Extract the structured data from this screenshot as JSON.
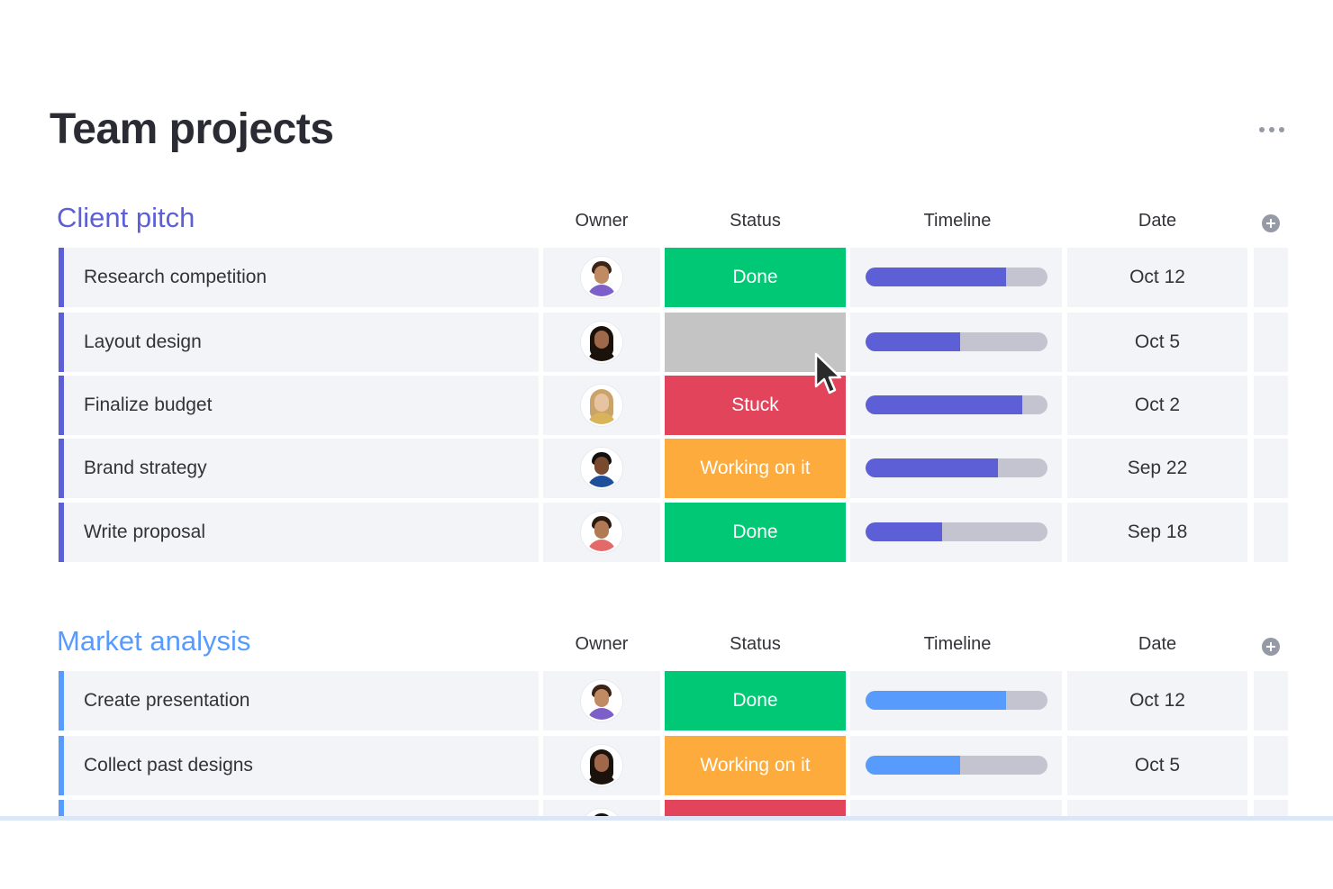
{
  "page": {
    "title": "Team projects",
    "more_icon": "more-horizontal-icon"
  },
  "colors": {
    "done": "#00c875",
    "stuck": "#e2445c",
    "working": "#fdab3d",
    "empty": "#c4c4c4",
    "group1_accent": "#5c5fd6",
    "group2_accent": "#579bfc"
  },
  "groups": [
    {
      "title": "Client pitch",
      "color": "#5c5fd6",
      "columns": {
        "owner": "Owner",
        "status": "Status",
        "timeline": "Timeline",
        "date": "Date"
      },
      "add_column_icon": "plus-circle-icon",
      "rows": [
        {
          "name": "Research competition",
          "status": "Done",
          "status_color": "#00c875",
          "timeline": 0.77,
          "date": "Oct 12",
          "avatar": {
            "hair": "#3b2417",
            "skin": "#c08a62",
            "shirt": "#7c5fc9"
          }
        },
        {
          "name": "Layout design",
          "status": "",
          "status_color": "#c4c4c4",
          "timeline": 0.52,
          "date": "Oct 5",
          "avatar": {
            "hair": "#1c120c",
            "skin": "#a0684a",
            "shirt": "#1c120c",
            "long": true
          }
        },
        {
          "name": "Finalize budget",
          "status": "Stuck",
          "status_color": "#e2445c",
          "timeline": 0.86,
          "date": "Oct 2",
          "avatar": {
            "hair": "#c9a36a",
            "skin": "#e8c3a0",
            "shirt": "#d9b35a",
            "long": true
          }
        },
        {
          "name": "Brand strategy",
          "status": "Working on it",
          "status_color": "#fdab3d",
          "timeline": 0.73,
          "date": "Sep 22",
          "avatar": {
            "hair": "#111111",
            "skin": "#7a4a2e",
            "shirt": "#1f4f9a"
          }
        },
        {
          "name": "Write proposal",
          "status": "Done",
          "status_color": "#00c875",
          "timeline": 0.42,
          "date": "Sep 18",
          "avatar": {
            "hair": "#2a1a10",
            "skin": "#b07a55",
            "shirt": "#e46a6a"
          }
        }
      ]
    },
    {
      "title": "Market analysis",
      "color": "#579bfc",
      "columns": {
        "owner": "Owner",
        "status": "Status",
        "timeline": "Timeline",
        "date": "Date"
      },
      "add_column_icon": "plus-circle-icon",
      "rows": [
        {
          "name": "Create presentation",
          "status": "Done",
          "status_color": "#00c875",
          "timeline": 0.77,
          "date": "Oct 12",
          "avatar": {
            "hair": "#3b2417",
            "skin": "#c08a62",
            "shirt": "#7c5fc9"
          }
        },
        {
          "name": "Collect past designs",
          "status": "Working on it",
          "status_color": "#fdab3d",
          "timeline": 0.52,
          "date": "Oct 5",
          "avatar": {
            "hair": "#1c120c",
            "skin": "#a0684a",
            "shirt": "#1c120c",
            "long": true
          }
        },
        {
          "name": "",
          "status": "",
          "status_color": "#e2445c",
          "timeline": 0,
          "date": "",
          "avatar": {
            "hair": "#1c120c",
            "skin": "#a0684a",
            "shirt": "#1c120c"
          }
        }
      ]
    }
  ],
  "cursor_icon": "mouse-pointer-icon"
}
